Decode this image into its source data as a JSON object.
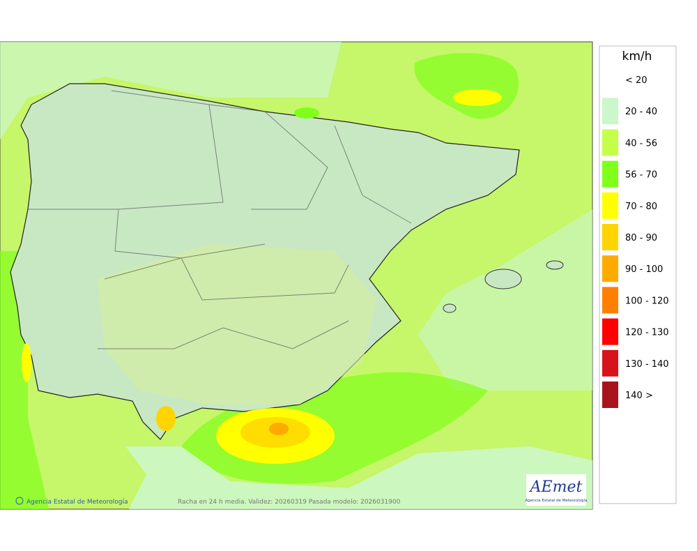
{
  "legend": {
    "title": "km/h",
    "items": [
      {
        "label": "< 20"
      },
      {
        "label": "20 - 40",
        "color": "#ccf7cc"
      },
      {
        "label": "40 - 56",
        "color": "#c4ff4a"
      },
      {
        "label": "56 - 70",
        "color": "#80ff1a"
      },
      {
        "label": "70 - 80",
        "color": "#ffff00"
      },
      {
        "label": "80 - 90",
        "color": "#ffd400"
      },
      {
        "label": "90 - 100",
        "color": "#ffaa00"
      },
      {
        "label": "100 - 120",
        "color": "#ff8000"
      },
      {
        "label": "120 - 130",
        "color": "#ff0000"
      },
      {
        "label": "130 - 140",
        "color": "#d7141c"
      },
      {
        "label": "140 >",
        "color": "#a8141e"
      }
    ]
  },
  "map": {
    "credit": "Agencia Estatal de Meteorología",
    "caption": "Racha en 24 h media. Validez: 20260319 Pasada modelo: 2026031900",
    "logo": {
      "name": "AEmet",
      "subtitle": "Agencia Estatal de Meteorología"
    }
  }
}
